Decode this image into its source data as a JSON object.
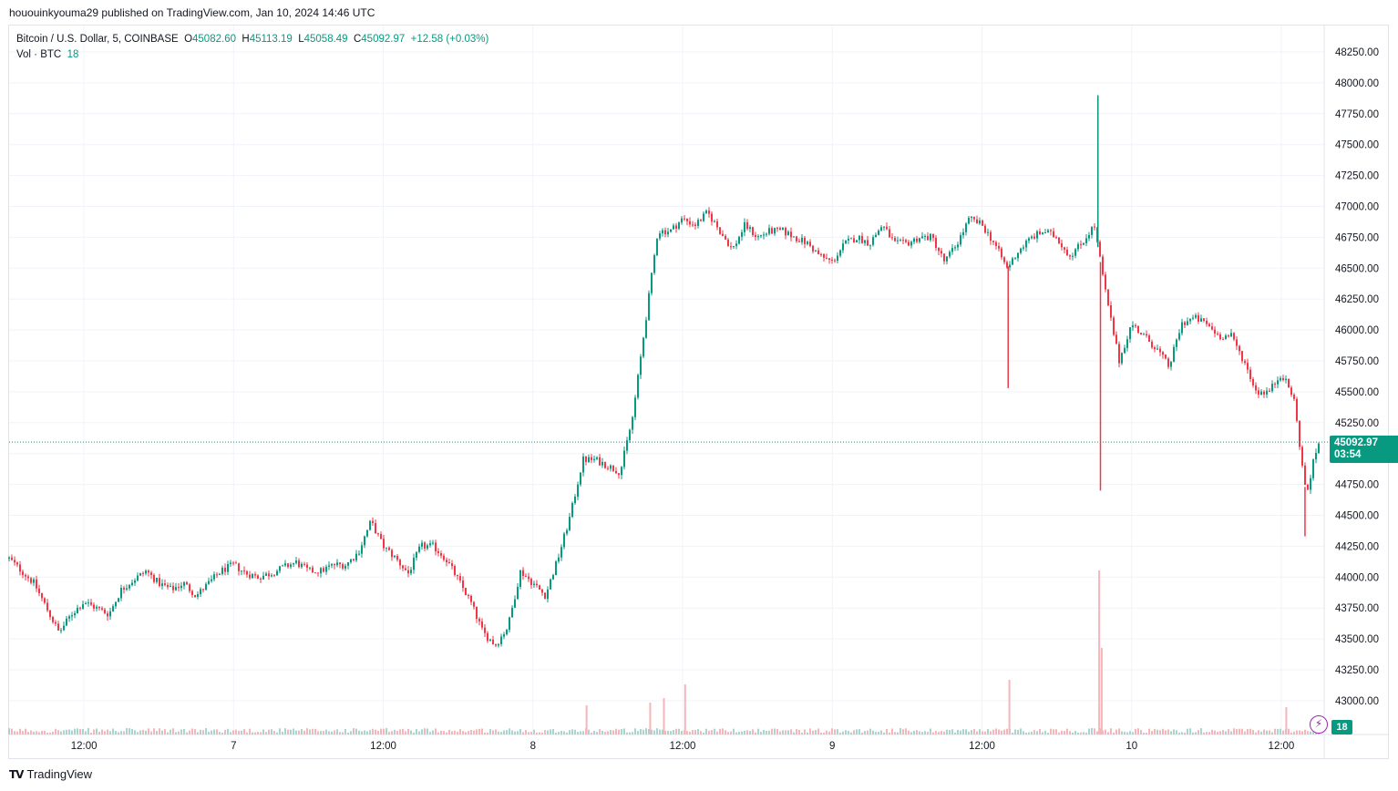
{
  "header": {
    "published": "hououinkyouma29 published on TradingView.com, Jan 10, 2024 14:46 UTC"
  },
  "legend": {
    "symbol": "Bitcoin / U.S. Dollar, 5, COINBASE",
    "o_label": "O",
    "o_value": "45082.60",
    "h_label": "H",
    "h_value": "45113.19",
    "l_label": "L",
    "l_value": "45058.49",
    "c_label": "C",
    "c_value": "45092.97",
    "change": "+12.58 (+0.03%)",
    "vol_label": "Vol · BTC",
    "vol_value": "18"
  },
  "price_tag": {
    "price": "45092.97",
    "countdown": "03:54"
  },
  "volume_tag": "18",
  "footer": {
    "brand": "TradingView",
    "logo_icon": "tradingview-logo-icon"
  },
  "colors": {
    "up": "#089981",
    "down": "#f23645",
    "vol_up": "#a8d5cd",
    "vol_down": "#f5b5b9",
    "grid": "#f0f3fa"
  },
  "chart_data": {
    "type": "candlestick",
    "symbol": "BTC/USD",
    "interval": "5",
    "exchange": "COINBASE",
    "ylim": [
      43050,
      48300
    ],
    "y_ticks": [
      "48250.00",
      "48000.00",
      "47750.00",
      "47500.00",
      "47250.00",
      "47000.00",
      "46750.00",
      "46500.00",
      "46250.00",
      "46000.00",
      "45750.00",
      "45500.00",
      "45250.00",
      "45000.00",
      "44750.00",
      "44500.00",
      "44250.00",
      "44000.00",
      "43750.00",
      "43500.00",
      "43250.00",
      "43000.00"
    ],
    "x_ticks": [
      "12:00",
      "7",
      "12:00",
      "8",
      "12:00",
      "9",
      "12:00",
      "10",
      "12:00"
    ],
    "x_tick_hours": [
      12,
      24,
      36,
      48,
      60,
      72,
      84,
      96,
      108
    ],
    "hours_span": [
      6,
      111
    ],
    "last_price": 45092.97,
    "price_path": [
      [
        6,
        44150
      ],
      [
        7,
        44050
      ],
      [
        8,
        43950
      ],
      [
        9,
        43750
      ],
      [
        10,
        43550
      ],
      [
        11,
        43700
      ],
      [
        12,
        43800
      ],
      [
        13,
        43750
      ],
      [
        14,
        43700
      ],
      [
        15,
        43900
      ],
      [
        16,
        43980
      ],
      [
        17,
        44050
      ],
      [
        18,
        43950
      ],
      [
        19,
        43900
      ],
      [
        20,
        43950
      ],
      [
        21,
        43850
      ],
      [
        22,
        43950
      ],
      [
        23,
        44050
      ],
      [
        24,
        44100
      ],
      [
        25,
        44030
      ],
      [
        26,
        44000
      ],
      [
        27,
        44030
      ],
      [
        28,
        44080
      ],
      [
        29,
        44120
      ],
      [
        30,
        44050
      ],
      [
        31,
        44050
      ],
      [
        32,
        44100
      ],
      [
        33,
        44100
      ],
      [
        34,
        44200
      ],
      [
        35,
        44450
      ],
      [
        36,
        44250
      ],
      [
        37,
        44150
      ],
      [
        38,
        44030
      ],
      [
        39,
        44250
      ],
      [
        40,
        44250
      ],
      [
        41,
        44150
      ],
      [
        42,
        43980
      ],
      [
        43,
        43800
      ],
      [
        44,
        43550
      ],
      [
        45,
        43450
      ],
      [
        46,
        43600
      ],
      [
        47,
        44050
      ],
      [
        48,
        43950
      ],
      [
        49,
        43850
      ],
      [
        50,
        44150
      ],
      [
        51,
        44500
      ],
      [
        52,
        44950
      ],
      [
        53,
        44950
      ],
      [
        54,
        44900
      ],
      [
        55,
        44850
      ],
      [
        56,
        45300
      ],
      [
        57,
        46050
      ],
      [
        58,
        46800
      ],
      [
        59,
        46800
      ],
      [
        60,
        46900
      ],
      [
        61,
        46850
      ],
      [
        62,
        46950
      ],
      [
        63,
        46800
      ],
      [
        64,
        46650
      ],
      [
        65,
        46850
      ],
      [
        66,
        46750
      ],
      [
        67,
        46800
      ],
      [
        68,
        46800
      ],
      [
        69,
        46750
      ],
      [
        70,
        46700
      ],
      [
        71,
        46600
      ],
      [
        72,
        46550
      ],
      [
        73,
        46700
      ],
      [
        74,
        46750
      ],
      [
        75,
        46700
      ],
      [
        76,
        46850
      ],
      [
        77,
        46700
      ],
      [
        78,
        46700
      ],
      [
        79,
        46750
      ],
      [
        80,
        46750
      ],
      [
        81,
        46550
      ],
      [
        82,
        46700
      ],
      [
        83,
        46900
      ],
      [
        84,
        46850
      ],
      [
        85,
        46700
      ],
      [
        86,
        46500
      ],
      [
        87,
        46650
      ],
      [
        88,
        46750
      ],
      [
        89,
        46800
      ],
      [
        90,
        46750
      ],
      [
        91,
        46600
      ],
      [
        92,
        46700
      ],
      [
        93,
        46850
      ],
      [
        94,
        46250
      ],
      [
        95,
        45750
      ],
      [
        96,
        46050
      ],
      [
        97,
        45950
      ],
      [
        98,
        45850
      ],
      [
        99,
        45700
      ],
      [
        100,
        46050
      ],
      [
        101,
        46100
      ],
      [
        102,
        46050
      ],
      [
        103,
        45950
      ],
      [
        104,
        45950
      ],
      [
        105,
        45750
      ],
      [
        106,
        45500
      ],
      [
        107,
        45500
      ],
      [
        108,
        45650
      ],
      [
        109,
        45450
      ],
      [
        110,
        44650
      ],
      [
        110.5,
        44900
      ],
      [
        111,
        45093
      ]
    ],
    "wick_spikes": [
      {
        "hour": 93.3,
        "high": 47900
      },
      {
        "hour": 93.5,
        "low": 44700
      },
      {
        "hour": 86.1,
        "low": 45530
      },
      {
        "hour": 109.9,
        "low": 44330
      }
    ],
    "volume_spikes": [
      {
        "hour": 93.4,
        "value": 180
      },
      {
        "hour": 93.6,
        "value": 95
      },
      {
        "hour": 86.2,
        "value": 60
      },
      {
        "hour": 60.2,
        "value": 55
      },
      {
        "hour": 57.4,
        "value": 35
      },
      {
        "hour": 52.3,
        "value": 32
      },
      {
        "hour": 58.5,
        "value": 40
      },
      {
        "hour": 108.4,
        "value": 30
      }
    ]
  }
}
